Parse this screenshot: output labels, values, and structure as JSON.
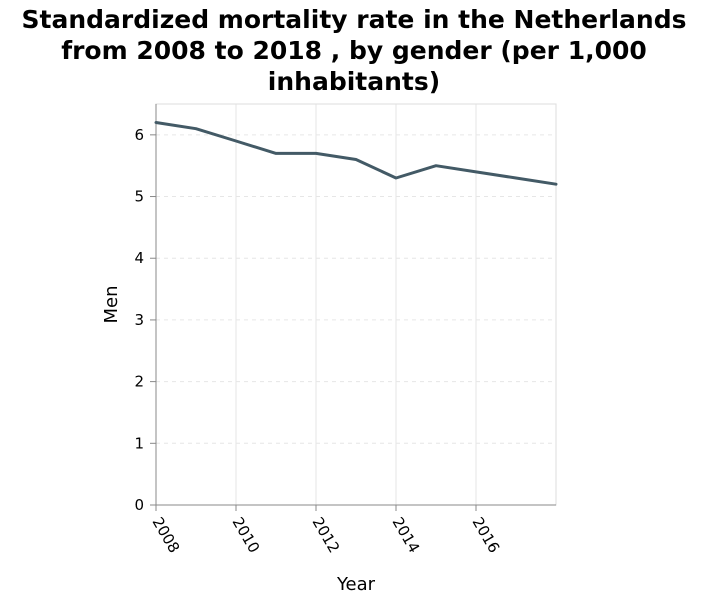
{
  "chart_data": {
    "type": "line",
    "title": [
      "Standardized mortality rate in the Netherlands",
      "from 2008 to 2018 , by gender (per 1,000",
      "inhabitants)"
    ],
    "xlabel": "Year",
    "ylabel": "Men",
    "xlim": [
      2008,
      2018
    ],
    "ylim": [
      0,
      6.5
    ],
    "x_ticks": [
      2008,
      2010,
      2012,
      2014,
      2016
    ],
    "y_ticks": [
      0,
      1,
      2,
      3,
      4,
      5,
      6
    ],
    "grid": true,
    "legend": "none",
    "line_color": "#435a66",
    "series": [
      {
        "x": [
          2008,
          2009,
          2010,
          2011,
          2012,
          2013,
          2014,
          2015,
          2016,
          2017,
          2018
        ],
        "values": [
          6.2,
          6.1,
          5.9,
          5.7,
          5.7,
          5.6,
          5.3,
          5.5,
          5.4,
          5.3,
          5.2
        ]
      }
    ]
  }
}
